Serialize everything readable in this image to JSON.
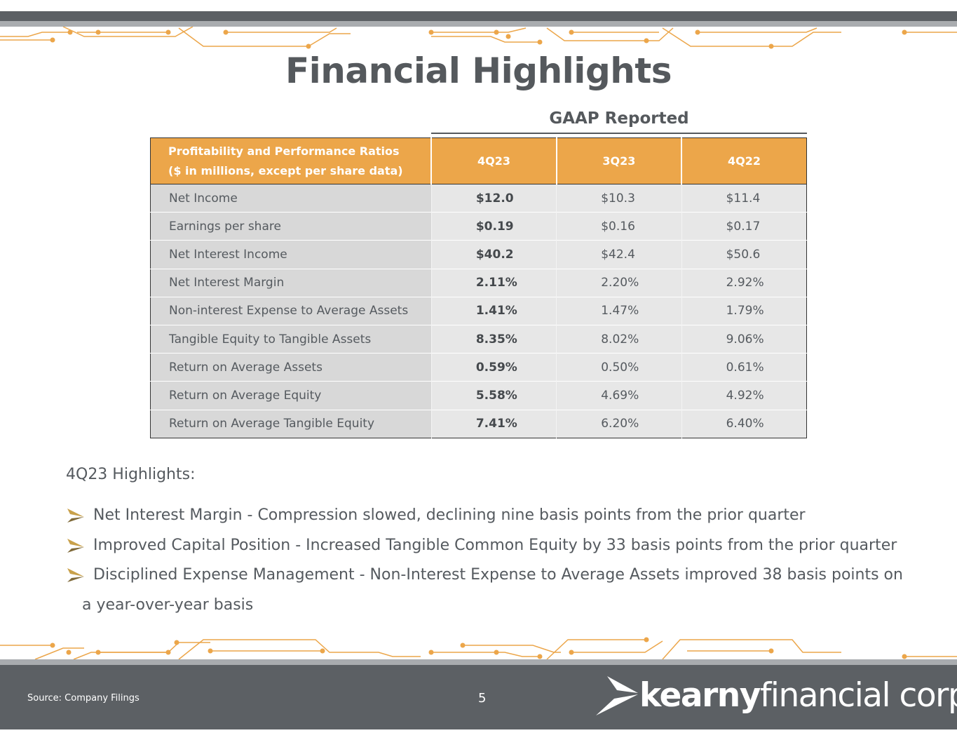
{
  "title": "Financial Highlights",
  "gaap_label": "GAAP Reported",
  "table": {
    "header_line1": "Profitability and Performance Ratios",
    "header_line2": "($ in millions, except per share data)",
    "columns": [
      "4Q23",
      "3Q23",
      "4Q22"
    ],
    "rows": [
      {
        "label": "Net Income",
        "values": [
          "$12.0",
          "$10.3",
          "$11.4"
        ]
      },
      {
        "label": "Earnings per share",
        "values": [
          "$0.19",
          "$0.16",
          "$0.17"
        ]
      },
      {
        "label": "Net Interest Income",
        "values": [
          "$40.2",
          "$42.4",
          "$50.6"
        ]
      },
      {
        "label": "Net Interest Margin",
        "values": [
          "2.11%",
          "2.20%",
          "2.92%"
        ]
      },
      {
        "label": "Non-interest Expense to Average Assets",
        "values": [
          "1.41%",
          "1.47%",
          "1.79%"
        ]
      },
      {
        "label": "Tangible Equity to Tangible Assets",
        "values": [
          "8.35%",
          "8.02%",
          "9.06%"
        ]
      },
      {
        "label": "Return on Average Assets",
        "values": [
          "0.59%",
          "0.50%",
          "0.61%"
        ]
      },
      {
        "label": "Return on Average Equity",
        "values": [
          "5.58%",
          "4.69%",
          "4.92%"
        ]
      },
      {
        "label": "Return on Average Tangible Equity",
        "values": [
          "7.41%",
          "6.20%",
          "6.40%"
        ]
      }
    ]
  },
  "highlights": {
    "heading": "4Q23 Highlights:",
    "bullets": [
      "Net Interest Margin - Compression slowed, declining nine basis points from the prior quarter",
      "Improved Capital Position - Increased Tangible Common Equity by 33 basis points from the prior quarter",
      "Disciplined Expense Management - Non-Interest Expense to Average Assets improved 38 basis points on",
      "a year-over-year basis"
    ]
  },
  "footer": {
    "source": "Source: Company Filings",
    "page_number": "5",
    "logo_bold": "kearny",
    "logo_light": "financial corp."
  },
  "colors": {
    "accent_orange": "#eca64a",
    "dark_gray": "#5c6064",
    "light_gray": "#a9acaf"
  }
}
